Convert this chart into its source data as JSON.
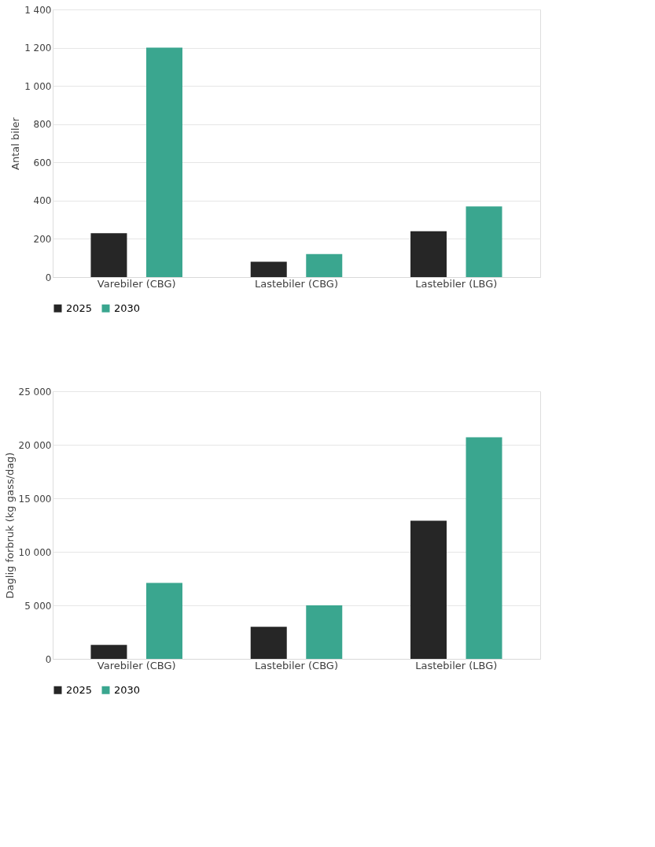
{
  "chart_data": [
    {
      "type": "bar",
      "ylabel": "Antal biler",
      "categories": [
        "Varebiler (CBG)",
        "Lastebiler (CBG)",
        "Lastebiler (LBG)"
      ],
      "series": [
        {
          "name": "2025",
          "color": "#262626",
          "values": [
            230,
            80,
            240
          ]
        },
        {
          "name": "2030",
          "color": "#3aa68f",
          "values": [
            1200,
            120,
            370
          ]
        }
      ],
      "ylim": [
        0,
        1400
      ],
      "yticks": [
        0,
        {
          "value": 200,
          "label": "200"
        },
        {
          "value": 400,
          "label": "400"
        },
        {
          "value": 600,
          "label": "600"
        },
        {
          "value": 800,
          "label": "800"
        },
        {
          "value": 1000,
          "label": "1 000"
        },
        {
          "value": 1200,
          "label": "1 200"
        },
        {
          "value": 1400,
          "label": "1 400"
        }
      ],
      "grid": "y",
      "legend": "bottom"
    },
    {
      "type": "bar",
      "ylabel": "Daglig forbruk (kg gass/dag)",
      "categories": [
        "Varebiler (CBG)",
        "Lastebiler (CBG)",
        "Lastebiler (LBG)"
      ],
      "series": [
        {
          "name": "2025",
          "color": "#262626",
          "values": [
            1300,
            3000,
            12900
          ]
        },
        {
          "name": "2030",
          "color": "#3aa68f",
          "values": [
            7100,
            5000,
            20700
          ]
        }
      ],
      "ylim": [
        0,
        25000
      ],
      "yticks": [
        0,
        {
          "value": 5000,
          "label": "5 000"
        },
        {
          "value": 10000,
          "label": "10 000"
        },
        {
          "value": 15000,
          "label": "15 000"
        },
        {
          "value": 20000,
          "label": "20 000"
        },
        {
          "value": 25000,
          "label": "25 000"
        }
      ],
      "grid": "y",
      "legend": "bottom"
    }
  ]
}
